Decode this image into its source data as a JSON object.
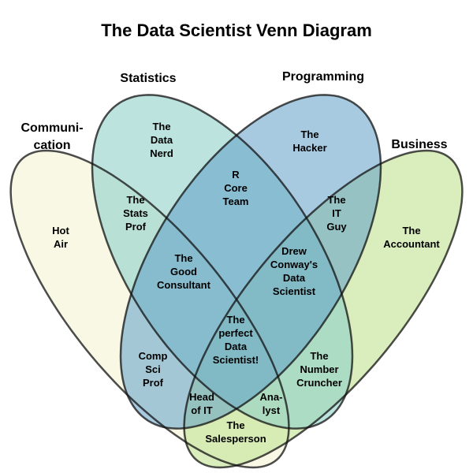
{
  "title": "The Data Scientist Venn Diagram",
  "sets": [
    {
      "id": "communication",
      "lines": [
        "Communi-",
        "cation"
      ],
      "color": "#f6f6dc"
    },
    {
      "id": "business",
      "lines": [
        "Business"
      ],
      "color": "#c4e39a"
    },
    {
      "id": "statistics",
      "lines": [
        "Statistics"
      ],
      "color": "#8fd0c8"
    },
    {
      "id": "programming",
      "lines": [
        "Programming"
      ],
      "color": "#5e9fc8"
    }
  ],
  "regions": [
    {
      "id": "data-nerd",
      "lines": [
        "The",
        "Data",
        "Nerd"
      ]
    },
    {
      "id": "hacker",
      "lines": [
        "The",
        "Hacker"
      ]
    },
    {
      "id": "stats-prof",
      "lines": [
        "The",
        "Stats",
        "Prof"
      ]
    },
    {
      "id": "r-core-team",
      "lines": [
        "R",
        "Core",
        "Team"
      ]
    },
    {
      "id": "it-guy",
      "lines": [
        "The",
        "IT",
        "Guy"
      ]
    },
    {
      "id": "hot-air",
      "lines": [
        "Hot",
        "Air"
      ]
    },
    {
      "id": "accountant",
      "lines": [
        "The",
        "Accountant"
      ]
    },
    {
      "id": "good-consultant",
      "lines": [
        "The",
        "Good",
        "Consultant"
      ]
    },
    {
      "id": "drew-conway",
      "lines": [
        "Drew",
        "Conway's",
        "Data",
        "Scientist"
      ]
    },
    {
      "id": "perfect-data-scientist",
      "lines": [
        "The",
        "perfect",
        "Data",
        "Scientist!"
      ]
    },
    {
      "id": "comp-sci-prof",
      "lines": [
        "Comp",
        "Sci",
        "Prof"
      ]
    },
    {
      "id": "number-cruncher",
      "lines": [
        "The",
        "Number",
        "Cruncher"
      ]
    },
    {
      "id": "head-of-it",
      "lines": [
        "Head",
        "of IT"
      ]
    },
    {
      "id": "analyst",
      "lines": [
        "Ana-",
        "lyst"
      ]
    },
    {
      "id": "salesperson",
      "lines": [
        "The",
        "Salesperson"
      ]
    }
  ]
}
